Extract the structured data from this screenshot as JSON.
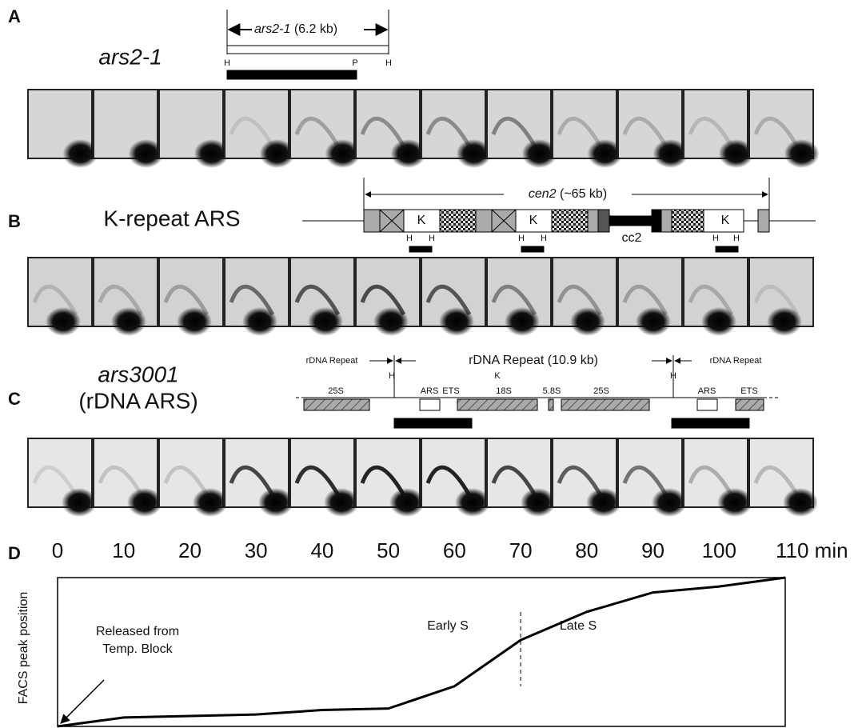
{
  "panels": {
    "A": {
      "letter": "A",
      "name": "ars2-1",
      "map_name": "ars2-1",
      "map_size": "(6.2 kb)",
      "sites": [
        "H",
        "P",
        "H"
      ]
    },
    "B": {
      "letter": "B",
      "name": "K-repeat ARS",
      "map_name": "cen2",
      "map_size": "(~65 kb)",
      "k_labels": [
        "K",
        "K",
        "K"
      ],
      "sites": [
        "H",
        "H",
        "H",
        "H",
        "H",
        "H"
      ],
      "core": "cc2"
    },
    "C": {
      "letter": "C",
      "name": "ars3001",
      "subname": "(rDNA ARS)",
      "repeat_left": "rDNA Repeat",
      "repeat_main": "rDNA Repeat (10.9 kb)",
      "repeat_right": "rDNA Repeat",
      "sites": [
        "H",
        "K",
        "H"
      ],
      "elements": [
        "25S",
        "ARS",
        "ETS",
        "18S",
        "5.8S",
        "25S",
        "ARS",
        "ETS"
      ]
    }
  },
  "chart_data": {
    "type": "line",
    "panel_letter": "D",
    "ylabel": "FACS peak position",
    "x": [
      0,
      10,
      20,
      30,
      40,
      50,
      60,
      70,
      80,
      90,
      100,
      110
    ],
    "values": [
      0,
      6,
      7,
      8,
      11,
      12,
      27,
      58,
      77,
      90,
      94,
      100
    ],
    "color": "#000000",
    "xlim": [
      0,
      110
    ],
    "ylim": [
      0,
      100
    ],
    "xticks": [
      0,
      10,
      20,
      30,
      40,
      50,
      60,
      70,
      80,
      90,
      100,
      {
        "value": 110,
        "label": "110 min"
      }
    ],
    "divider_x": 70,
    "annotations": [
      "Released from Temp. Block",
      "Early S",
      "Late S"
    ]
  }
}
